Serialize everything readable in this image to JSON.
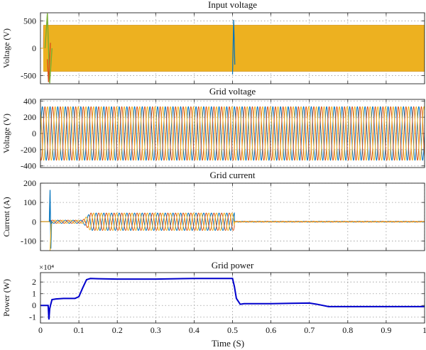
{
  "figure": {
    "x_axis_label": "Time (S)"
  },
  "chart_data": [
    {
      "type": "line",
      "title": "Input voltage",
      "ylabel": "Voltage (V)",
      "xlim": [
        0,
        1
      ],
      "ylim": [
        -650,
        650
      ],
      "yticks": [
        -500,
        0,
        500
      ],
      "xticks": [
        0,
        0.1,
        0.2,
        0.3,
        0.4,
        0.5,
        0.6,
        0.7,
        0.8,
        0.9,
        1
      ],
      "grid": true,
      "show_xtick_labels": false,
      "series": [
        {
          "color": "#0072bd",
          "values_desc": "three-phase PWM, approx ±420 V"
        },
        {
          "color": "#d95319",
          "values_desc": "three-phase PWM, approx ±420 V"
        },
        {
          "color": "#edb120",
          "values_desc": "three-phase PWM, approx ±420 V"
        },
        {
          "color": "#77ac30",
          "values_desc": "transient spike at t≈0.02 and t≈0.5"
        }
      ],
      "amplitude": 420,
      "frequency_hz": 50
    },
    {
      "type": "line",
      "title": "Grid voltage",
      "ylabel": "Voltage (V)",
      "xlim": [
        0,
        1
      ],
      "ylim": [
        -420,
        420
      ],
      "yticks": [
        -400,
        -200,
        0,
        200,
        400
      ],
      "xticks": [
        0,
        0.1,
        0.2,
        0.3,
        0.4,
        0.5,
        0.6,
        0.7,
        0.8,
        0.9,
        1
      ],
      "grid": true,
      "show_xtick_labels": false,
      "series": [
        {
          "color": "#0072bd",
          "amplitude": 330,
          "phase_deg": 0
        },
        {
          "color": "#d95319",
          "amplitude": 330,
          "phase_deg": -120
        },
        {
          "color": "#edb120",
          "amplitude": 330,
          "phase_deg": 120
        }
      ],
      "frequency_hz": 50
    },
    {
      "type": "line",
      "title": "Grid current",
      "ylabel": "Current (A)",
      "xlim": [
        0,
        1
      ],
      "ylim": [
        -150,
        200
      ],
      "yticks": [
        -100,
        0,
        100,
        200
      ],
      "xticks": [
        0,
        0.1,
        0.2,
        0.3,
        0.4,
        0.5,
        0.6,
        0.7,
        0.8,
        0.9,
        1
      ],
      "grid": true,
      "show_xtick_labels": false,
      "series": [
        {
          "color": "#0072bd"
        },
        {
          "color": "#d95319"
        },
        {
          "color": "#edb120"
        }
      ],
      "segments": [
        {
          "t0": 0.025,
          "t1": 0.11,
          "amplitude": 8
        },
        {
          "t0": 0.11,
          "t1": 0.505,
          "amplitude": 45
        },
        {
          "t0": 0.505,
          "t1": 1.0,
          "amplitude": 2
        }
      ],
      "spike": {
        "t": 0.025,
        "value": 165
      },
      "frequency_hz": 50
    },
    {
      "type": "line",
      "title": "Grid power",
      "ylabel": "Power (W)",
      "yscale_label": "×10⁴",
      "xlim": [
        0,
        1
      ],
      "ylim": [
        -1.5,
        2.8
      ],
      "yticks": [
        -1,
        0,
        1,
        2
      ],
      "xticks": [
        0,
        0.1,
        0.2,
        0.3,
        0.4,
        0.5,
        0.6,
        0.7,
        0.8,
        0.9,
        1
      ],
      "xtick_labels": [
        "0",
        "0.1",
        "0.2",
        "0.3",
        "0.4",
        "0.5",
        "0.6",
        "0.7",
        "0.8",
        "0.9",
        "1"
      ],
      "grid": true,
      "show_xtick_labels": true,
      "series": [
        {
          "color": "#0000cc",
          "x": [
            0,
            0.02,
            0.022,
            0.024,
            0.026,
            0.03,
            0.04,
            0.06,
            0.09,
            0.1,
            0.11,
            0.12,
            0.13,
            0.15,
            0.2,
            0.3,
            0.4,
            0.5,
            0.505,
            0.51,
            0.52,
            0.53,
            0.55,
            0.6,
            0.65,
            0.7,
            0.72,
            0.75,
            0.8,
            0.9,
            1.0
          ],
          "y": [
            0,
            0,
            -1.2,
            -0.3,
            0,
            0.5,
            0.55,
            0.6,
            0.6,
            0.75,
            1.5,
            2.2,
            2.3,
            2.28,
            2.25,
            2.25,
            2.3,
            2.3,
            1.6,
            0.6,
            0.1,
            0.15,
            0.15,
            0.15,
            0.18,
            0.2,
            0.1,
            -0.1,
            -0.1,
            -0.1,
            -0.1
          ]
        }
      ]
    }
  ]
}
